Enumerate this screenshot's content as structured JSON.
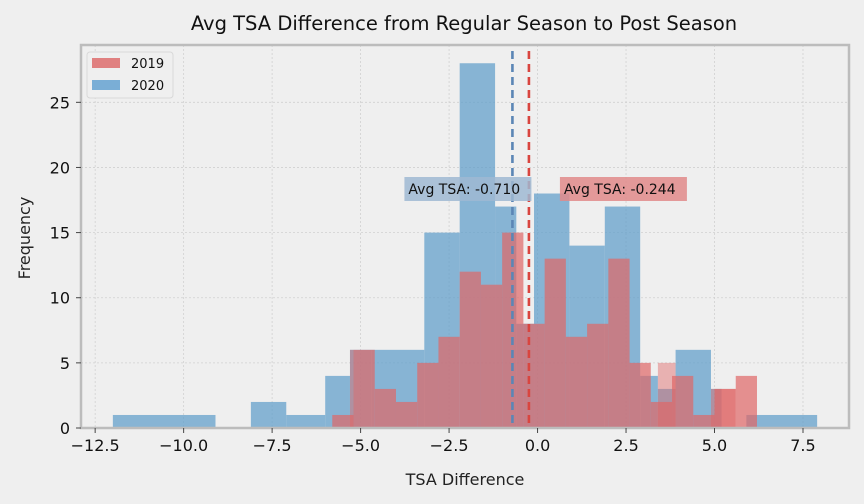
{
  "chart_data": {
    "type": "histogram",
    "title": "Avg TSA Difference from Regular Season to Post Season",
    "xlabel": "TSA Difference",
    "ylabel": "Frequency",
    "xlim": [
      -12.9,
      8.8
    ],
    "ylim": [
      0,
      29.4
    ],
    "xticks": [
      -12.5,
      -10.0,
      -7.5,
      -5.0,
      -2.5,
      0.0,
      2.5,
      5.0,
      7.5
    ],
    "xtick_labels": [
      "−12.5",
      "−10.0",
      "−7.5",
      "−5.0",
      "−2.5",
      "0.0",
      "2.5",
      "5.0",
      "7.5"
    ],
    "yticks": [
      0,
      5,
      10,
      15,
      20,
      25
    ],
    "ytick_labels": [
      "0",
      "5",
      "10",
      "15",
      "20",
      "25"
    ],
    "grid": true,
    "legend_position": "upper-left",
    "series": [
      {
        "name": "2020",
        "color": "#5b9bc9",
        "bins": [
          {
            "x0": -12.0,
            "x1": -9.1,
            "count": 1
          },
          {
            "x0": -8.1,
            "x1": -7.1,
            "count": 2
          },
          {
            "x0": -7.1,
            "x1": -6.0,
            "count": 1
          },
          {
            "x0": -6.0,
            "x1": -5.3,
            "count": 4
          },
          {
            "x0": -5.3,
            "x1": -4.7,
            "count": 6
          },
          {
            "x0": -4.7,
            "x1": -3.2,
            "count": 6
          },
          {
            "x0": -3.2,
            "x1": -2.2,
            "count": 15
          },
          {
            "x0": -2.2,
            "x1": -1.2,
            "count": 28
          },
          {
            "x0": -1.2,
            "x1": -0.6,
            "count": 17
          },
          {
            "x0": -0.6,
            "x1": -0.1,
            "count": 8
          },
          {
            "x0": -0.1,
            "x1": 0.9,
            "count": 18
          },
          {
            "x0": 0.9,
            "x1": 1.9,
            "count": 14
          },
          {
            "x0": 1.9,
            "x1": 2.9,
            "count": 17
          },
          {
            "x0": 2.9,
            "x1": 3.4,
            "count": 4
          },
          {
            "x0": 3.4,
            "x1": 3.9,
            "count": 3
          },
          {
            "x0": 3.9,
            "x1": 4.9,
            "count": 6
          },
          {
            "x0": 4.9,
            "x1": 5.2,
            "count": 3
          },
          {
            "x0": 5.9,
            "x1": 7.9,
            "count": 1
          }
        ]
      },
      {
        "name": "2019",
        "color": "#e06666",
        "bins": [
          {
            "x0": -5.8,
            "x1": -5.2,
            "count": 1
          },
          {
            "x0": -5.2,
            "x1": -4.6,
            "count": 6
          },
          {
            "x0": -4.6,
            "x1": -4.0,
            "count": 3
          },
          {
            "x0": -4.0,
            "x1": -3.4,
            "count": 2
          },
          {
            "x0": -3.4,
            "x1": -2.8,
            "count": 5
          },
          {
            "x0": -2.8,
            "x1": -2.2,
            "count": 7
          },
          {
            "x0": -2.2,
            "x1": -1.6,
            "count": 12
          },
          {
            "x0": -1.6,
            "x1": -1.0,
            "count": 11
          },
          {
            "x0": -1.0,
            "x1": -0.4,
            "count": 15
          },
          {
            "x0": -0.4,
            "x1": 0.2,
            "count": 8
          },
          {
            "x0": 0.2,
            "x1": 0.8,
            "count": 13
          },
          {
            "x0": 0.8,
            "x1": 1.4,
            "count": 7
          },
          {
            "x0": 1.4,
            "x1": 2.0,
            "count": 8
          },
          {
            "x0": 2.0,
            "x1": 2.6,
            "count": 13
          },
          {
            "x0": 2.6,
            "x1": 3.2,
            "count": 5
          },
          {
            "x0": 3.2,
            "x1": 3.8,
            "count": 2
          },
          {
            "x0": 3.8,
            "x1": 4.4,
            "count": 4
          },
          {
            "x0": 4.4,
            "x1": 5.0,
            "count": 1
          },
          {
            "x0": 5.0,
            "x1": 5.6,
            "count": 3
          },
          {
            "x0": 5.6,
            "x1": 6.2,
            "count": 4
          }
        ]
      }
    ],
    "extra_fragments": [
      {
        "series": "2019",
        "x0": -5.3,
        "x1": -5.2,
        "count": 6
      },
      {
        "series": "2019",
        "x0": 3.4,
        "x1": 3.9,
        "count": 5
      },
      {
        "series": "2019",
        "x0": 4.9,
        "x1": 5.6,
        "count": 3
      }
    ],
    "mean_lines": [
      {
        "name": "mean-2020",
        "x": -0.71,
        "color": "#5b86b5",
        "label": "Avg TSA: -0.710"
      },
      {
        "name": "mean-2019",
        "x": -0.244,
        "color": "#d9453f",
        "label": "Avg TSA: -0.244"
      }
    ],
    "legend": [
      {
        "label": "2019",
        "color": "#e08080"
      },
      {
        "label": "2020",
        "color": "#7aaed6"
      }
    ]
  }
}
